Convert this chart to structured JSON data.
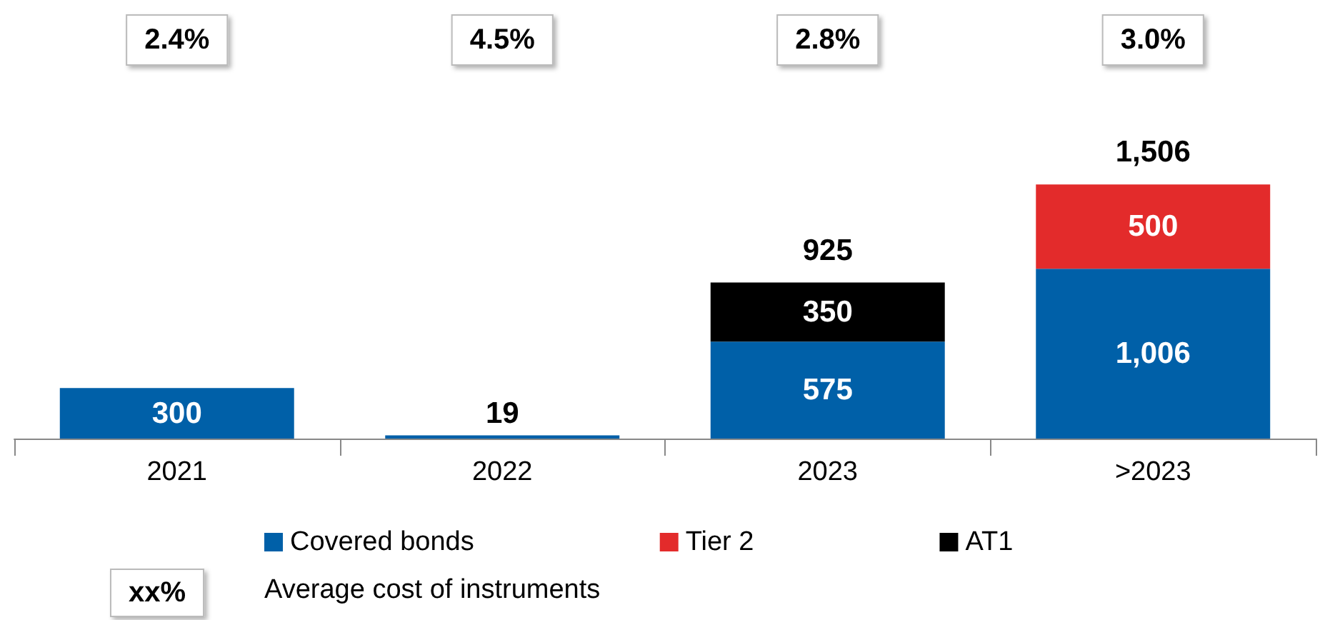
{
  "chart_data": {
    "type": "bar",
    "stacked": true,
    "legend": "bottom",
    "grid": false,
    "categories": [
      "2021",
      "2022",
      "2023",
      ">2023"
    ],
    "series": [
      {
        "name": "Covered bonds",
        "color": "#0060a8",
        "values": [
          300,
          19,
          575,
          1006
        ],
        "value_labels": [
          "300",
          "19",
          "575",
          "1,006"
        ]
      },
      {
        "name": "Tier 2",
        "color": "#e32b2b",
        "values": [
          null,
          null,
          null,
          500
        ],
        "value_labels": [
          null,
          null,
          null,
          "500"
        ]
      },
      {
        "name": "AT1",
        "color": "#000000",
        "values": [
          null,
          null,
          350,
          null
        ],
        "value_labels": [
          null,
          null,
          "350",
          null
        ]
      }
    ],
    "totals": [
      null,
      null,
      "925",
      "1,506"
    ],
    "annotations": [
      "2.4%",
      "4.5%",
      "2.8%",
      "3.0%",
      "xx%",
      "Average cost of instruments"
    ]
  }
}
